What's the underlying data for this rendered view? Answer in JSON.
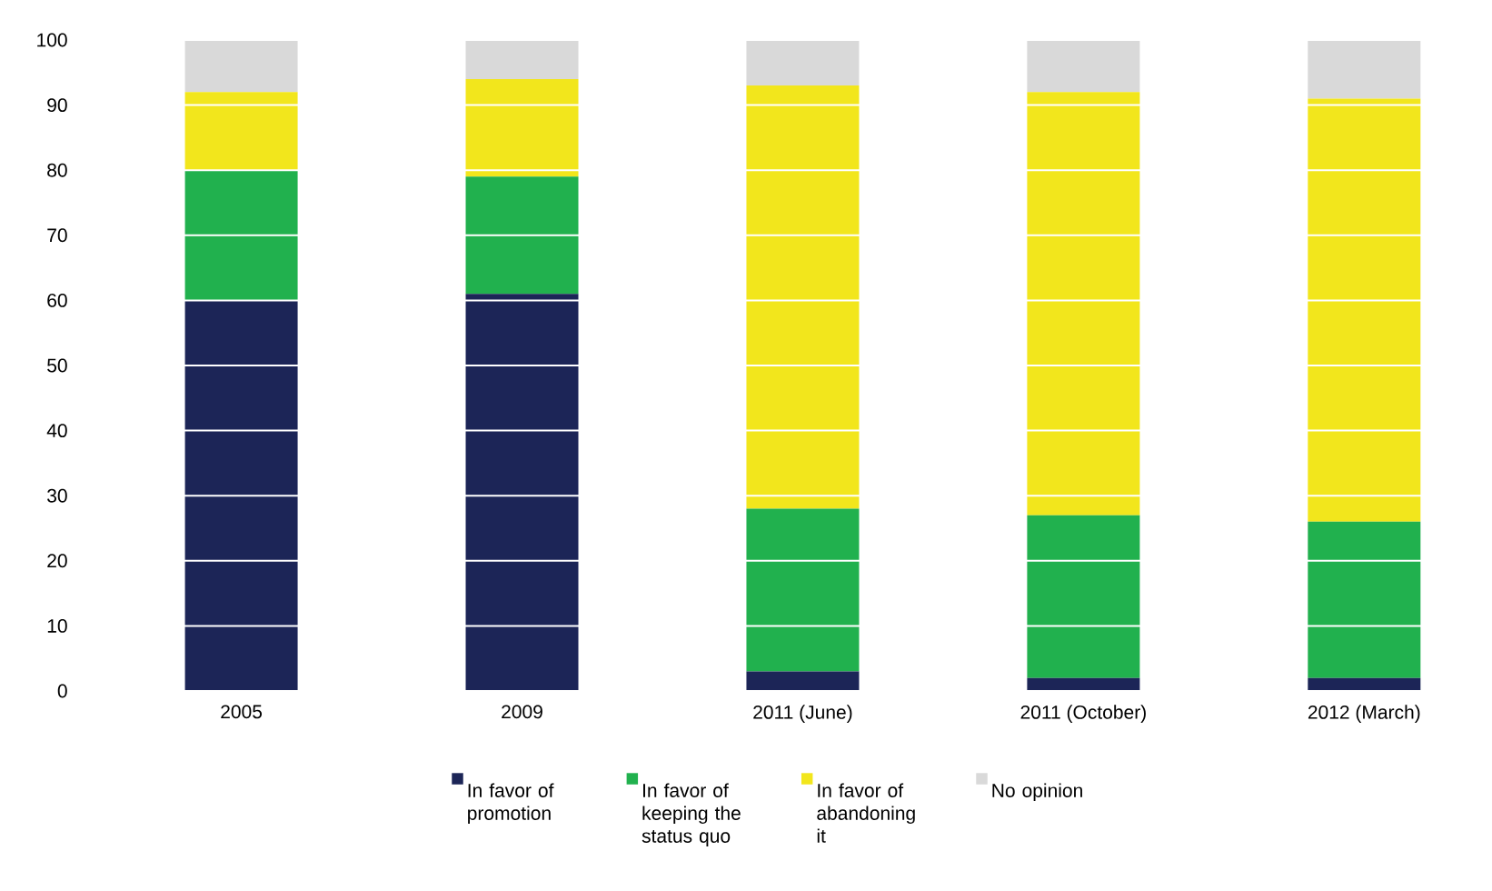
{
  "chart_data": {
    "type": "bar",
    "stacked": true,
    "categories": [
      "2005",
      "2009",
      "2011 (June)",
      "2011 (October)",
      "2012 (March)"
    ],
    "series": [
      {
        "name": "In favor of promotion",
        "color": "#1c2557",
        "values": [
          60,
          61,
          3,
          2,
          2
        ]
      },
      {
        "name": "In favor of keeping the status quo",
        "color": "#21b14e",
        "values": [
          20,
          18,
          25,
          25,
          24
        ]
      },
      {
        "name": "In favor of abandoning it",
        "color": "#f2e61c",
        "values": [
          12,
          15,
          65,
          65,
          65
        ]
      },
      {
        "name": "No opinion",
        "color": "#d9d9d9",
        "values": [
          8,
          6,
          7,
          8,
          9
        ]
      }
    ],
    "ylim": [
      0,
      100
    ],
    "yticks": [
      0,
      10,
      20,
      30,
      40,
      50,
      60,
      70,
      80,
      90,
      100
    ],
    "grid": true,
    "legend": "bottom"
  }
}
